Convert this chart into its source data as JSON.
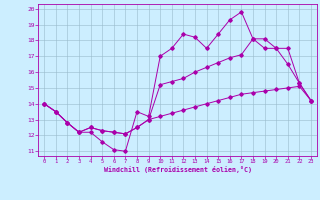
{
  "xlabel": "Windchill (Refroidissement éolien,°C)",
  "background_color": "#cceeff",
  "line_color": "#aa00aa",
  "grid_color": "#99bbcc",
  "xlim": [
    -0.5,
    23.5
  ],
  "ylim": [
    10.7,
    20.3
  ],
  "xticks": [
    0,
    1,
    2,
    3,
    4,
    5,
    6,
    7,
    8,
    9,
    10,
    11,
    12,
    13,
    14,
    15,
    16,
    17,
    18,
    19,
    20,
    21,
    22,
    23
  ],
  "yticks": [
    11,
    12,
    13,
    14,
    15,
    16,
    17,
    18,
    19,
    20
  ],
  "line1_x": [
    0,
    1,
    2,
    3,
    4,
    5,
    6,
    7,
    8,
    9,
    10,
    11,
    12,
    13,
    14,
    15,
    16,
    17,
    18,
    19,
    20,
    21,
    22,
    23
  ],
  "line1_y": [
    14.0,
    13.5,
    12.8,
    12.2,
    12.2,
    11.6,
    11.1,
    11.0,
    13.5,
    13.2,
    17.0,
    17.5,
    18.4,
    18.2,
    17.5,
    18.4,
    19.3,
    19.8,
    18.1,
    18.1,
    17.5,
    16.5,
    15.3,
    14.2
  ],
  "line2_x": [
    0,
    1,
    2,
    3,
    4,
    5,
    6,
    7,
    8,
    9,
    10,
    11,
    12,
    13,
    14,
    15,
    16,
    17,
    18,
    19,
    20,
    21,
    22,
    23
  ],
  "line2_y": [
    14.0,
    13.5,
    12.8,
    12.2,
    12.5,
    12.3,
    12.2,
    12.1,
    12.5,
    13.0,
    15.2,
    15.4,
    15.6,
    16.0,
    16.3,
    16.6,
    16.9,
    17.1,
    18.1,
    17.5,
    17.5,
    17.5,
    15.3,
    14.2
  ],
  "line3_x": [
    0,
    1,
    2,
    3,
    4,
    5,
    6,
    7,
    8,
    9,
    10,
    11,
    12,
    13,
    14,
    15,
    16,
    17,
    18,
    19,
    20,
    21,
    22,
    23
  ],
  "line3_y": [
    14.0,
    13.5,
    12.8,
    12.2,
    12.5,
    12.3,
    12.2,
    12.1,
    12.5,
    13.0,
    13.2,
    13.4,
    13.6,
    13.8,
    14.0,
    14.2,
    14.4,
    14.6,
    14.7,
    14.8,
    14.9,
    15.0,
    15.1,
    14.2
  ]
}
